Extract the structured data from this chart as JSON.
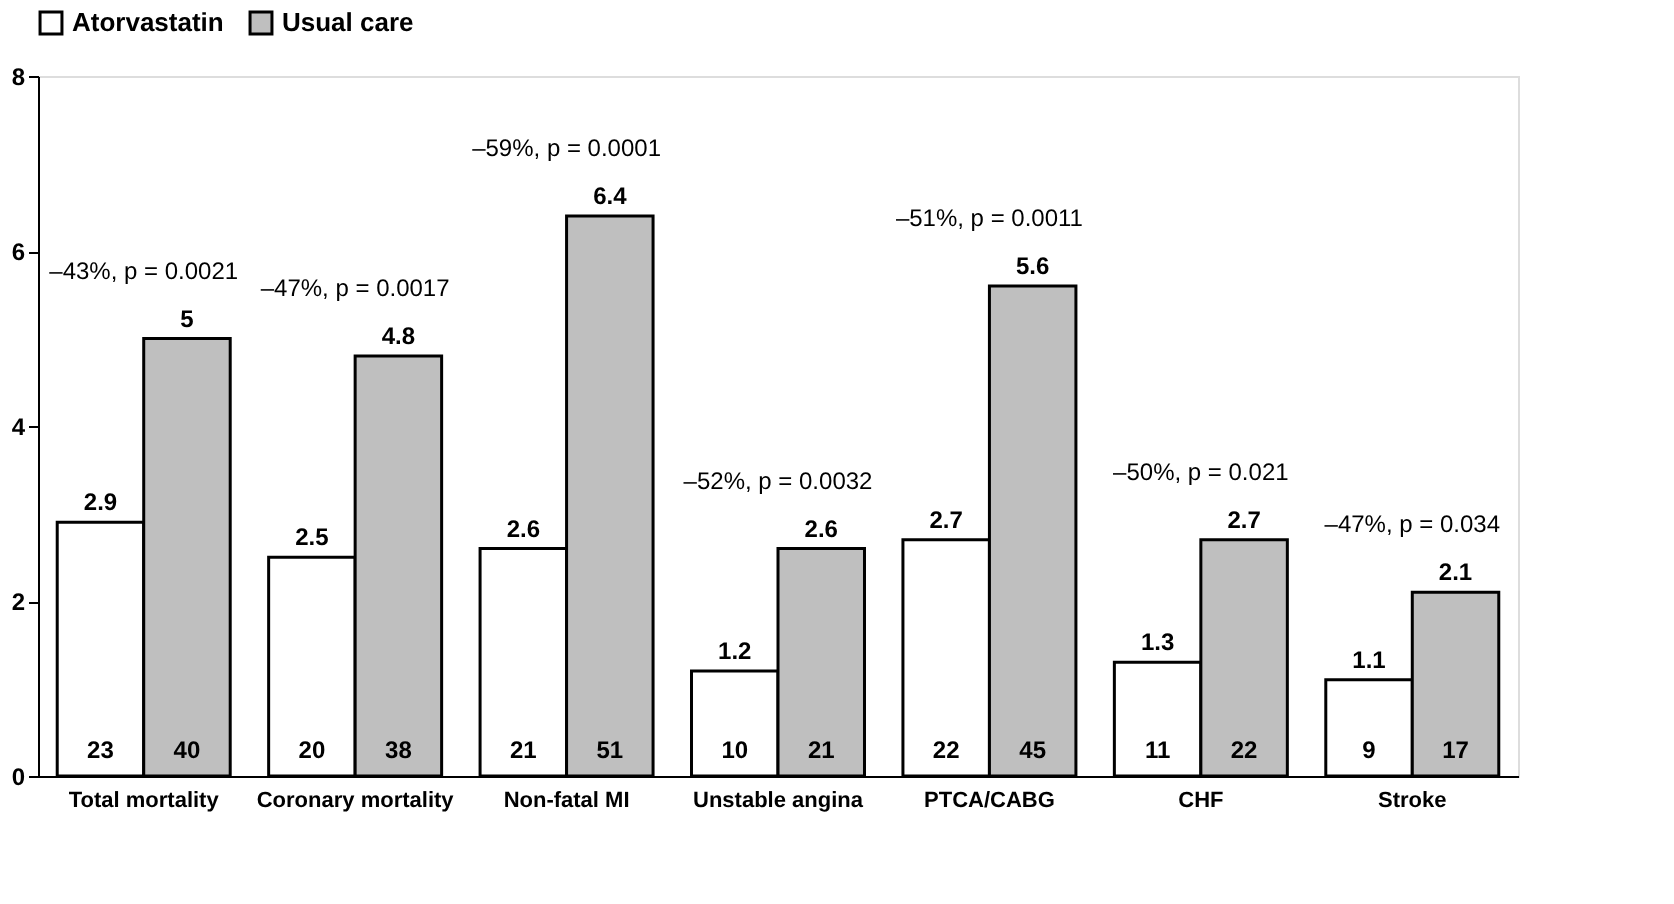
{
  "chart_data": {
    "type": "bar",
    "categories": [
      "Total mortality",
      "Coronary mortality",
      "Non-fatal MI",
      "Unstable angina",
      "PTCA/CABG",
      "CHF",
      "Stroke"
    ],
    "series": [
      {
        "name": "Atorvastatin",
        "color": "#ffffff",
        "values": [
          2.9,
          2.5,
          2.6,
          1.2,
          2.7,
          1.3,
          1.1
        ]
      },
      {
        "name": "Usual care",
        "color": "#bfbfbf",
        "values": [
          5,
          4.8,
          6.4,
          2.6,
          5.6,
          2.7,
          2.1
        ]
      }
    ],
    "ylim": [
      0,
      8
    ],
    "yticks": [
      0,
      2,
      4,
      6,
      8
    ],
    "grid": false,
    "legend": "top",
    "data_labels": true,
    "annotations": [
      "–43%, p = 0.0021",
      "–47%, p = 0.0017",
      "–59%, p = 0.0001",
      "–52%, p = 0.0032",
      "–51%, p = 0.0011",
      "–50%, p = 0.021",
      "–47%, p = 0.034",
      {
        "text": "23",
        "x": "Total mortality",
        "y": 0
      },
      {
        "text": "40",
        "x": "Total mortality",
        "y": 0
      },
      {
        "text": "20",
        "x": "Coronary mortality",
        "y": 0
      },
      {
        "text": "38",
        "x": "Coronary mortality",
        "y": 0
      },
      {
        "text": "21",
        "x": "Non-fatal MI",
        "y": 0
      },
      {
        "text": "51",
        "x": "Non-fatal MI",
        "y": 0
      },
      {
        "text": "10",
        "x": "Unstable angina",
        "y": 0
      },
      {
        "text": "21",
        "x": "Unstable angina",
        "y": 0
      },
      {
        "text": "22",
        "x": "PTCA/CABG",
        "y": 0
      },
      {
        "text": "45",
        "x": "PTCA/CABG",
        "y": 0
      },
      {
        "text": "11",
        "x": "CHF",
        "y": 0
      },
      {
        "text": "22",
        "x": "CHF",
        "y": 0
      },
      {
        "text": "9",
        "x": "Stroke",
        "y": 0
      },
      {
        "text": "17",
        "x": "Stroke",
        "y": 0
      }
    ]
  }
}
